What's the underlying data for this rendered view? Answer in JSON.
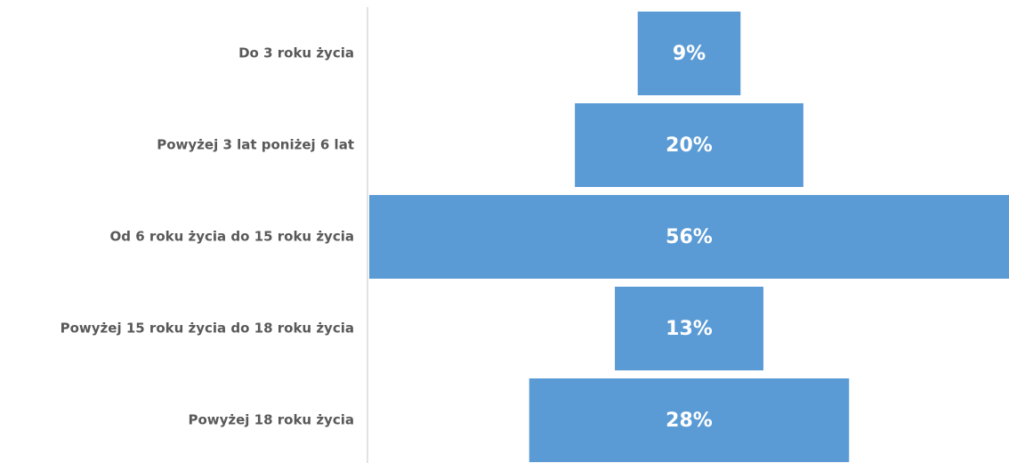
{
  "chart_data": {
    "type": "funnel",
    "categories": [
      "Do 3 roku życia",
      "Powyżej 3 lat poniżej 6 lat",
      "Od 6 roku życia do 15 roku życia",
      "Powyżej 15 roku życia do 18 roku życia",
      "Powyżej 18 roku życia"
    ],
    "values": [
      9,
      20,
      56,
      13,
      28
    ],
    "value_labels": [
      "9%",
      "20%",
      "56%",
      "13%",
      "28%"
    ],
    "color": "#5b9bd5"
  }
}
